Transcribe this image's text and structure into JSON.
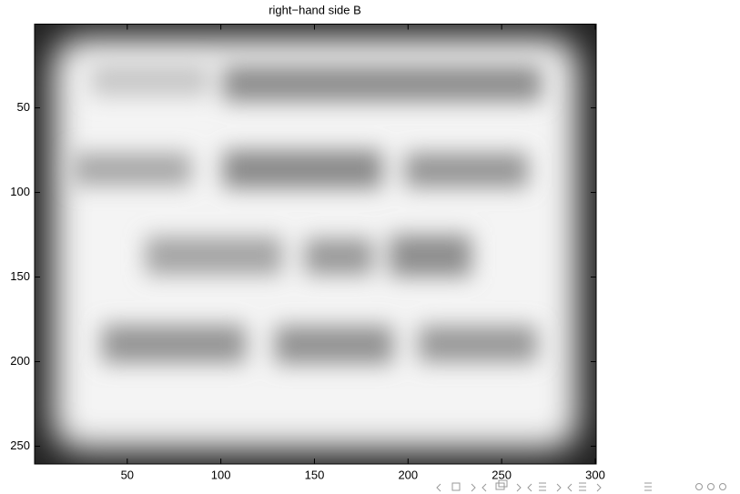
{
  "chart_data": {
    "type": "image",
    "title": "right−hand side B",
    "xlim": [
      0.5,
      300.5
    ],
    "ylim": [
      0.5,
      260.5
    ],
    "y_reversed": true,
    "xticks": [
      50,
      100,
      150,
      200,
      250,
      300
    ],
    "yticks": [
      50,
      100,
      150,
      200,
      250
    ]
  }
}
